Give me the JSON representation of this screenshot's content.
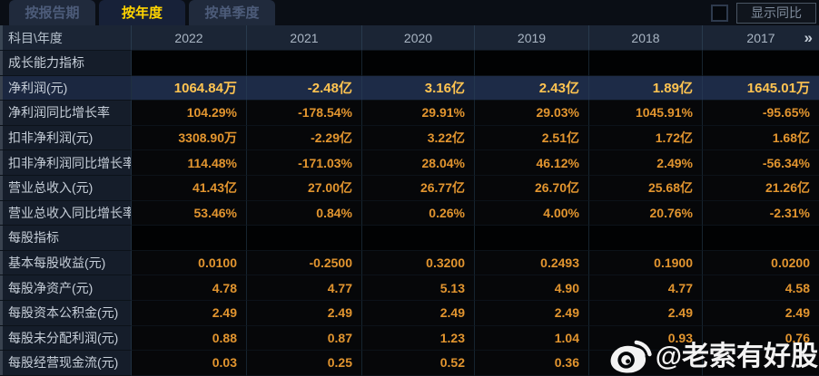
{
  "tabs": [
    {
      "label": "按报告期",
      "active": false
    },
    {
      "label": "按年度",
      "active": true
    },
    {
      "label": "按单季度",
      "active": false
    }
  ],
  "controls": {
    "compare_label": "显示同比",
    "checkbox_checked": false
  },
  "table": {
    "corner_label": "科目\\年度",
    "years": [
      "2022",
      "2021",
      "2020",
      "2019",
      "2018",
      "2017"
    ],
    "more_icon": "»",
    "rows": [
      {
        "type": "section",
        "label": "成长能力指标"
      },
      {
        "type": "data",
        "label": "净利润(元)",
        "highlight": true,
        "values": [
          "1064.84万",
          "-2.48亿",
          "3.16亿",
          "2.43亿",
          "1.89亿",
          "1645.01万"
        ]
      },
      {
        "type": "data",
        "label": "净利润同比增长率",
        "values": [
          "104.29%",
          "-178.54%",
          "29.91%",
          "29.03%",
          "1045.91%",
          "-95.65%"
        ]
      },
      {
        "type": "data",
        "label": "扣非净利润(元)",
        "values": [
          "3308.90万",
          "-2.29亿",
          "3.22亿",
          "2.51亿",
          "1.72亿",
          "1.68亿"
        ]
      },
      {
        "type": "data",
        "label": "扣非净利润同比增长率",
        "values": [
          "114.48%",
          "-171.03%",
          "28.04%",
          "46.12%",
          "2.49%",
          "-56.34%"
        ]
      },
      {
        "type": "data",
        "label": "营业总收入(元)",
        "values": [
          "41.43亿",
          "27.00亿",
          "26.77亿",
          "26.70亿",
          "25.68亿",
          "21.26亿"
        ]
      },
      {
        "type": "data",
        "label": "营业总收入同比增长率",
        "values": [
          "53.46%",
          "0.84%",
          "0.26%",
          "4.00%",
          "20.76%",
          "-2.31%"
        ]
      },
      {
        "type": "section",
        "label": "每股指标"
      },
      {
        "type": "data",
        "label": "基本每股收益(元)",
        "values": [
          "0.0100",
          "-0.2500",
          "0.3200",
          "0.2493",
          "0.1900",
          "0.0200"
        ]
      },
      {
        "type": "data",
        "label": "每股净资产(元)",
        "values": [
          "4.78",
          "4.77",
          "5.13",
          "4.90",
          "4.77",
          "4.58"
        ]
      },
      {
        "type": "data",
        "label": "每股资本公积金(元)",
        "values": [
          "2.49",
          "2.49",
          "2.49",
          "2.49",
          "2.49",
          "2.49"
        ]
      },
      {
        "type": "data",
        "label": "每股未分配利润(元)",
        "values": [
          "0.88",
          "0.87",
          "1.23",
          "1.04",
          "0.93",
          "0.76"
        ]
      },
      {
        "type": "data",
        "label": "每股经营现金流(元)",
        "values": [
          "0.03",
          "0.25",
          "0.52",
          "0.36",
          "",
          ""
        ]
      }
    ]
  },
  "watermark": {
    "text": "@老索有好股"
  },
  "colors": {
    "value_gold": "#e2952f",
    "highlight_gold": "#ffc451",
    "active_tab_text": "#ffd400",
    "row_highlight_bg": "#1d2b47",
    "header_bg": "#1b2535",
    "label_bg": "#151d2a"
  }
}
